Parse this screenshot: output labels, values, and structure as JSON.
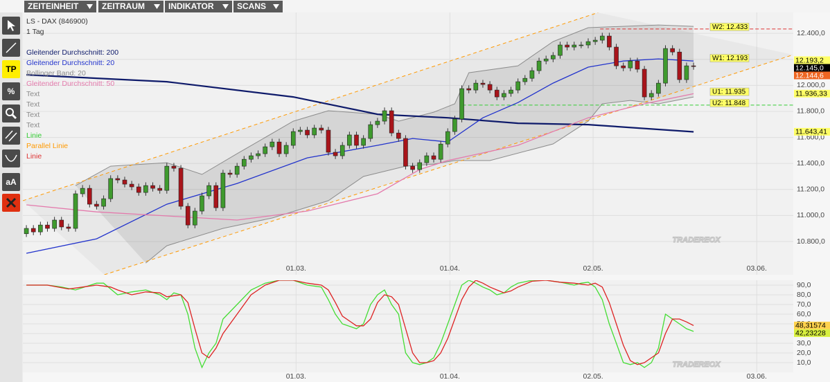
{
  "menu": [
    "ZEITEINHEIT",
    "ZEITRAUM",
    "INDIKATOR",
    "SCANS"
  ],
  "tools": [
    "TP",
    "%",
    "aA"
  ],
  "watermark": "TRADEREOX",
  "chart_data": [
    {
      "type": "candlestick",
      "title": "LS - DAX (846900)",
      "subtitle": "1 Tag",
      "xlim": [
        -0.5,
        109.2
      ],
      "ylim": [
        10545,
        12560
      ],
      "xticks": [
        {
          "value": 38.4,
          "label": "01.03."
        },
        {
          "value": 60.3,
          "label": "01.04."
        },
        {
          "value": 80.7,
          "label": "02.05."
        },
        {
          "value": 104,
          "label": "03.06."
        }
      ],
      "yticks": [
        {
          "value": 10800,
          "label": "10.800,0"
        },
        {
          "value": 11000,
          "label": "11.000,0"
        },
        {
          "value": 11200,
          "label": "11.200,0"
        },
        {
          "value": 11400,
          "label": "11.400,0"
        },
        {
          "value": 11600,
          "label": "11.600,0"
        },
        {
          "value": 11800,
          "label": "11.800,0"
        },
        {
          "value": 12000,
          "label": "12.000,0"
        },
        {
          "value": 12200,
          "label": "12.200,0"
        },
        {
          "value": 12400,
          "label": "12.400,0"
        }
      ],
      "grid": true,
      "up_color": "#3f9a2e",
      "down_color": "#a8141a",
      "open": [
        10860,
        10901,
        10874,
        10927,
        10901,
        10965,
        10912,
        10901,
        11167,
        11209,
        11087,
        11071,
        11129,
        11284,
        11273,
        11241,
        11220,
        11177,
        11230,
        11209,
        11193,
        11379,
        11363,
        11071,
        10927,
        11034,
        11151,
        11230,
        11060,
        11326,
        11316,
        11379,
        11432,
        11459,
        11475,
        11528,
        11565,
        11475,
        11539,
        11645,
        11656,
        11619,
        11672,
        11656,
        11486,
        11459,
        11539,
        11619,
        11539,
        11592,
        11698,
        11725,
        11805,
        11634,
        11592,
        11379,
        11353,
        11406,
        11459,
        11432,
        11549,
        11645,
        11741,
        11975,
        11964,
        12017,
        12007,
        11964,
        11911,
        11938,
        11964,
        12028,
        12054,
        12113,
        12187,
        12203,
        12230,
        12310,
        12294,
        12310,
        12310,
        12336,
        12347,
        12379,
        12294,
        12150,
        12134,
        12187,
        12124,
        11911,
        11938,
        12017,
        12283,
        12256,
        12044,
        12150
      ],
      "high": [
        10926,
        10926,
        10952,
        10952,
        10990,
        10990,
        10937,
        11192,
        11234,
        11234,
        11112,
        11154,
        11309,
        11309,
        11298,
        11266,
        11245,
        11255,
        11255,
        11234,
        11404,
        11404,
        11388,
        11096,
        11059,
        11176,
        11255,
        11255,
        11351,
        11351,
        11404,
        11457,
        11484,
        11500,
        11553,
        11590,
        11590,
        11564,
        11670,
        11681,
        11681,
        11697,
        11697,
        11681,
        11511,
        11564,
        11644,
        11644,
        11617,
        11723,
        11750,
        11830,
        11830,
        11659,
        11617,
        11404,
        11431,
        11484,
        11484,
        11574,
        11670,
        11766,
        12000,
        12000,
        12042,
        12042,
        12032,
        11989,
        11963,
        11989,
        12053,
        12079,
        12138,
        12212,
        12228,
        12255,
        12335,
        12335,
        12335,
        12335,
        12361,
        12372,
        12404,
        12404,
        12319,
        12175,
        12212,
        12212,
        12149,
        11963,
        12042,
        12308,
        12308,
        12281,
        12175,
        12175
      ],
      "low": [
        10835,
        10849,
        10849,
        10876,
        10876,
        10887,
        10876,
        10876,
        11142,
        11062,
        11046,
        11046,
        11104,
        11248,
        11216,
        11195,
        11152,
        11152,
        11184,
        11168,
        11168,
        11338,
        11046,
        10902,
        10902,
        11009,
        11126,
        11035,
        11035,
        11291,
        11291,
        11354,
        11407,
        11434,
        11450,
        11503,
        11450,
        11450,
        11514,
        11620,
        11594,
        11594,
        11631,
        11461,
        11434,
        11434,
        11514,
        11514,
        11514,
        11567,
        11673,
        11700,
        11609,
        11567,
        11354,
        11328,
        11328,
        11381,
        11407,
        11407,
        11524,
        11620,
        11716,
        11939,
        11939,
        11982,
        11939,
        11886,
        11886,
        11913,
        11939,
        12003,
        12029,
        12088,
        12162,
        12178,
        12205,
        12269,
        12269,
        12285,
        12285,
        12311,
        12322,
        12269,
        12125,
        12109,
        12109,
        12099,
        11886,
        11886,
        11913,
        11992,
        12231,
        12019,
        12019,
        12120
      ],
      "close": [
        10901,
        10874,
        10927,
        10901,
        10965,
        10912,
        10901,
        11167,
        11209,
        11087,
        11071,
        11129,
        11284,
        11273,
        11241,
        11220,
        11177,
        11230,
        11209,
        11193,
        11379,
        11363,
        11071,
        10927,
        11034,
        11151,
        11230,
        11060,
        11326,
        11316,
        11379,
        11432,
        11459,
        11475,
        11528,
        11565,
        11475,
        11539,
        11645,
        11656,
        11619,
        11672,
        11656,
        11486,
        11459,
        11539,
        11619,
        11539,
        11592,
        11698,
        11725,
        11805,
        11634,
        11592,
        11379,
        11353,
        11406,
        11459,
        11432,
        11549,
        11645,
        11741,
        11975,
        11964,
        12017,
        12007,
        11964,
        11911,
        11938,
        11964,
        12028,
        12054,
        12113,
        12187,
        12203,
        12230,
        12310,
        12294,
        12310,
        12310,
        12336,
        12347,
        12379,
        12294,
        12150,
        12134,
        12187,
        12124,
        11911,
        11938,
        12017,
        12283,
        12256,
        12044,
        12150,
        12145
      ],
      "series": [
        {
          "name": "Gleitender Durchschnitt: 200",
          "color": "#0e1a6a",
          "x": [
            0,
            20,
            38,
            50,
            60,
            70,
            80,
            95
          ],
          "values": [
            12081,
            12028,
            11911,
            11778,
            11751,
            11709,
            11698,
            11643
          ]
        },
        {
          "name": "Gleitender Durchschnitt: 20",
          "color": "#2233cc",
          "x": [
            0,
            10,
            20,
            30,
            40,
            50,
            55,
            60,
            65,
            70,
            75,
            80,
            85,
            90,
            95
          ],
          "values": [
            10710,
            10821,
            11087,
            11246,
            11443,
            11539,
            11592,
            11565,
            11751,
            11868,
            12017,
            12140,
            12187,
            12203,
            12187
          ]
        },
        {
          "name": "Bollinger Band: 20",
          "color": "#8c8c8c",
          "upper": {
            "x": [
              7,
              12,
              20,
              25,
              30,
              38,
              43,
              50,
              53,
              58,
              61,
              63,
              70,
              75,
              80,
              90,
              95
            ],
            "values": [
              11230,
              11379,
              11406,
              11316,
              11475,
              11725,
              11805,
              11778,
              11725,
              11794,
              11858,
              12097,
              12150,
              12336,
              12443,
              12464,
              12453
            ]
          },
          "lower": {
            "x": [
              17,
              20,
              28,
              35,
              43,
              48,
              54,
              58,
              61,
              66,
              75,
              80,
              82,
              86,
              90,
              95
            ],
            "values": [
              10635,
              10768,
              10901,
              10981,
              11114,
              11300,
              11379,
              11395,
              11422,
              11422,
              11550,
              11725,
              11858,
              11884,
              11858,
              11911
            ]
          }
        },
        {
          "name": "Gleitender Durchschnitt: 50",
          "color": "#e47aac",
          "x": [
            0,
            10,
            20,
            30,
            40,
            50,
            56,
            60,
            70,
            80,
            88,
            95
          ],
          "values": [
            11082,
            11028,
            10997,
            10965,
            11034,
            11167,
            11353,
            11422,
            11539,
            11751,
            11858,
            11936
          ]
        }
      ],
      "drawings": [
        {
          "name": "Text",
          "color": "#8a8a8a"
        },
        {
          "name": "Text",
          "color": "#8a8a8a"
        },
        {
          "name": "Text",
          "color": "#8a8a8a"
        },
        {
          "name": "Text",
          "color": "#8a8a8a"
        },
        {
          "name": "Linie",
          "color": "#33cc33",
          "from": 62.1,
          "value": 11848
        },
        {
          "name": "Parallel Linie",
          "color": "#ff9900",
          "lines": [
            {
              "x": [
                -0.5,
                81.4
              ],
              "values": [
                11114,
                12559
              ]
            },
            {
              "x": [
                11.1,
                109.2
              ],
              "values": [
                10545,
                12235
              ]
            }
          ]
        },
        {
          "name": "Linie",
          "color": "#dd3333",
          "from": 81.7,
          "value": 12433
        }
      ],
      "levels": [
        {
          "label": "W2: 12.433",
          "value": 12433
        },
        {
          "label": "W1: 12.193",
          "value": 12193
        },
        {
          "label": "U1: 11.935",
          "value": 11935
        },
        {
          "label": "U2: 11.848",
          "value": 11848
        }
      ],
      "price_labels": [
        {
          "value": 12193.2,
          "label": "12.193,2",
          "color": "#ffff66"
        },
        {
          "value": 12145,
          "label": "12.145,0",
          "color": "#000000",
          "text_color": "#ffffff"
        },
        {
          "value": 12144.6,
          "label": "12.144,6",
          "color": "#ee6622",
          "text_color": "#ffffff"
        },
        {
          "value": 11936.33,
          "label": "11.936,33",
          "color": "#ffff66"
        },
        {
          "value": 11643.41,
          "label": "11.643,41",
          "color": "#ffff66"
        }
      ]
    },
    {
      "type": "line",
      "xlim": [
        -0.5,
        109.2
      ],
      "ylim": [
        0,
        95
      ],
      "xticks": [
        {
          "value": 38.4,
          "label": "01.03."
        },
        {
          "value": 60.3,
          "label": "01.04."
        },
        {
          "value": 80.7,
          "label": "02.05."
        },
        {
          "value": 104,
          "label": "03.06."
        }
      ],
      "yticks": [
        {
          "value": 10,
          "label": "10,0"
        },
        {
          "value": 20,
          "label": "20,0"
        },
        {
          "value": 30,
          "label": "30,0"
        },
        {
          "value": 40,
          "label": "40,0"
        },
        {
          "value": 50,
          "label": "50,0"
        },
        {
          "value": 60,
          "label": "60,0"
        },
        {
          "value": 70,
          "label": "70,0"
        },
        {
          "value": 80,
          "label": "80,0"
        },
        {
          "value": 90,
          "label": "90,0"
        }
      ],
      "grid": true,
      "series": [
        {
          "color": "#44dd33",
          "x": [
            0,
            3,
            5,
            7,
            10,
            11,
            13,
            15,
            17,
            19,
            20,
            21,
            22,
            23,
            24,
            25,
            26,
            27,
            28,
            30,
            32,
            34,
            36,
            38,
            40,
            42,
            43,
            44,
            45,
            47,
            48,
            49,
            50,
            51,
            52,
            53,
            54,
            55,
            56,
            57,
            58,
            59,
            60,
            61,
            62,
            63,
            64,
            65,
            66,
            67,
            68,
            69,
            70,
            72,
            74,
            76,
            78,
            79,
            80,
            81,
            82,
            83,
            84,
            85,
            86,
            87,
            88,
            89,
            90,
            91,
            92,
            93,
            94,
            95
          ],
          "values": [
            90,
            90,
            88,
            85,
            92,
            92,
            80,
            83,
            85,
            80,
            75,
            82,
            80,
            60,
            25,
            5,
            20,
            30,
            55,
            70,
            85,
            92,
            95,
            95,
            90,
            88,
            75,
            60,
            50,
            45,
            50,
            70,
            80,
            85,
            70,
            60,
            20,
            10,
            8,
            10,
            15,
            30,
            50,
            70,
            90,
            95,
            92,
            88,
            85,
            80,
            82,
            88,
            92,
            95,
            95,
            93,
            90,
            92,
            93,
            88,
            75,
            50,
            30,
            10,
            8,
            10,
            5,
            10,
            25,
            60,
            55,
            50,
            45,
            42.23228
          ],
          "last_label": {
            "value": 42.23228,
            "label": "42,23228",
            "color": "#d8f040"
          }
        },
        {
          "color": "#dd2222",
          "x": [
            0,
            3,
            6,
            8,
            10,
            12,
            13,
            15,
            17,
            19,
            20,
            22,
            23,
            24,
            25,
            26,
            27,
            28,
            30,
            32,
            34,
            36,
            38,
            40,
            42,
            43,
            44,
            45,
            47,
            48,
            49,
            50,
            51,
            52,
            53,
            54,
            55,
            56,
            57,
            58,
            59,
            60,
            61,
            62,
            63,
            64,
            65,
            66,
            67,
            68,
            69,
            70,
            72,
            74,
            76,
            78,
            80,
            81,
            82,
            83,
            84,
            85,
            86,
            87,
            88,
            89,
            90,
            91,
            92,
            93,
            94,
            95
          ],
          "values": [
            90,
            90,
            86,
            88,
            90,
            88,
            85,
            80,
            83,
            82,
            78,
            80,
            72,
            45,
            20,
            15,
            25,
            40,
            60,
            80,
            90,
            95,
            95,
            92,
            90,
            85,
            72,
            58,
            48,
            48,
            55,
            72,
            80,
            78,
            70,
            45,
            20,
            10,
            10,
            12,
            20,
            35,
            55,
            75,
            88,
            95,
            92,
            88,
            85,
            82,
            84,
            88,
            94,
            95,
            93,
            92,
            90,
            92,
            88,
            72,
            50,
            28,
            12,
            8,
            10,
            15,
            20,
            40,
            55,
            55,
            52,
            48.31574
          ],
          "last_label": {
            "value": 48.31574,
            "label": "48,31574",
            "color": "#ffd24d"
          }
        }
      ]
    }
  ]
}
